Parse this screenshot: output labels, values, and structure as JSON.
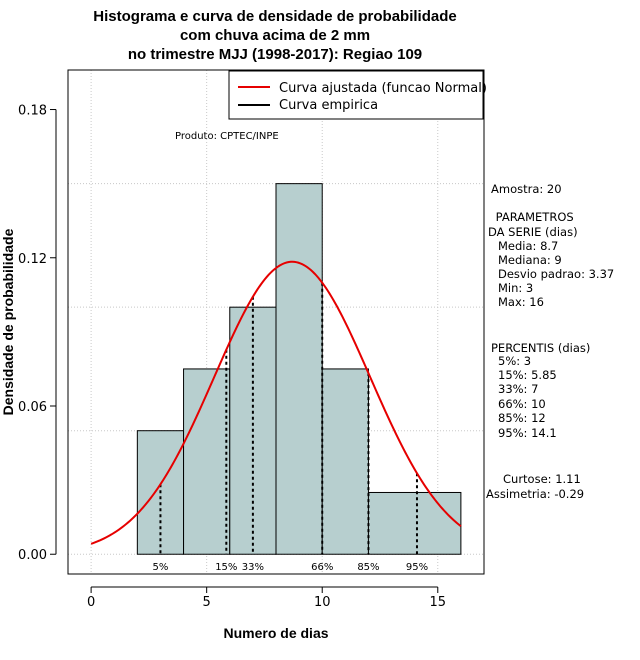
{
  "chart_data": {
    "type": "bar",
    "title_lines": [
      "Histograma e curva de densidade de probabilidade",
      "com chuva acima de 2 mm",
      "no trimestre MJJ (1998-2017): Regiao 109"
    ],
    "xlabel": "Numero de dias",
    "ylabel": "Densidade de probabilidade",
    "xlim": [
      -1,
      17
    ],
    "ylim": [
      -0.008,
      0.196
    ],
    "xticks": [
      0,
      5,
      10,
      15
    ],
    "yticks": [
      0.0,
      0.06,
      0.12,
      0.18
    ],
    "xtick_labels": [
      "0",
      "5",
      "10",
      "15"
    ],
    "ytick_labels": [
      "0.00",
      "0.06",
      "0.12",
      "0.18"
    ],
    "grid": true,
    "bins": [
      {
        "x0": 2,
        "x1": 4,
        "density": 0.05
      },
      {
        "x0": 4,
        "x1": 6,
        "density": 0.075
      },
      {
        "x0": 6,
        "x1": 8,
        "density": 0.1
      },
      {
        "x0": 8,
        "x1": 10,
        "density": 0.15
      },
      {
        "x0": 10,
        "x1": 12,
        "density": 0.075
      },
      {
        "x0": 12,
        "x1": 16,
        "density": 0.025
      }
    ],
    "bar_color": "#b7cfcf",
    "normal_curve": {
      "mean": 8.7,
      "sd": 3.37,
      "x_from": 0,
      "x_to": 16,
      "color": "#e60000"
    },
    "percentile_markers": [
      {
        "label": "5%",
        "x": 3
      },
      {
        "label": "15%",
        "x": 5.85
      },
      {
        "label": "33%",
        "x": 7
      },
      {
        "label": "66%",
        "x": 10
      },
      {
        "label": "85%",
        "x": 12
      },
      {
        "label": "95%",
        "x": 14.1
      }
    ],
    "legend": {
      "placement": "top-right",
      "entries": [
        {
          "label": "Curva ajustada (funcao Normal)",
          "color": "#e60000"
        },
        {
          "label": "Curva empirica",
          "color": "#000000"
        }
      ]
    },
    "product_note": "Produto: CPTEC/INPE",
    "stats_lines": [
      "Amostra: 20",
      " PARAMETROS",
      "DA SERIE (dias)",
      "Media: 8.7",
      "Mediana: 9",
      "Desvio padrao: 3.37",
      "Min: 3",
      "Max: 16",
      "PERCENTIS (dias)",
      "5%: 3",
      "15%: 5.85",
      "33%: 7",
      "66%: 10",
      "85%: 12",
      "95%: 14.1",
      "Curtose: 1.11",
      "Assimetria: -0.29"
    ]
  }
}
